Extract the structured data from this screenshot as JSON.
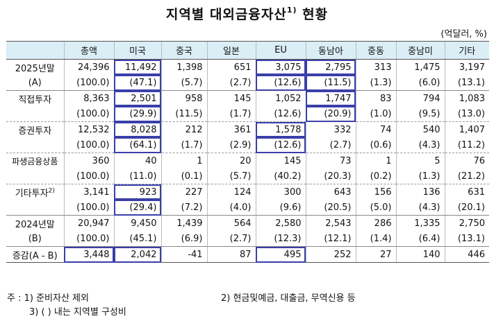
{
  "title": "지역별 대외금융자산",
  "title_sup": "1)",
  "title_suffix": " 현황",
  "unit": "(억달러, %)",
  "headers": [
    "",
    "총액",
    "미국",
    "중국",
    "일본",
    "EU",
    "동남아",
    "중동",
    "중남미",
    "기타"
  ],
  "rows": [
    {
      "label": "2025년말",
      "values": [
        "24,396",
        "11,492",
        "1,398",
        "651",
        "3,075",
        "2,795",
        "313",
        "1,475",
        "3,197"
      ]
    },
    {
      "label": "(A)",
      "values": [
        "(100.0)",
        "(47.1)",
        "(5.7)",
        "(2.7)",
        "(12.6)",
        "(11.5)",
        "(1.3)",
        "(6.0)",
        "(13.1)"
      ]
    },
    {
      "label": "직접투자",
      "values": [
        "8,363",
        "2,501",
        "958",
        "145",
        "1,052",
        "1,747",
        "83",
        "794",
        "1,083"
      ]
    },
    {
      "label": "",
      "values": [
        "(100.0)",
        "(29.9)",
        "(11.5)",
        "(1.7)",
        "(12.6)",
        "(20.9)",
        "(1.0)",
        "(9.5)",
        "(13.0)"
      ]
    },
    {
      "label": "증권투자",
      "values": [
        "12,532",
        "8,028",
        "212",
        "361",
        "1,578",
        "332",
        "74",
        "540",
        "1,407"
      ]
    },
    {
      "label": "",
      "values": [
        "(100.0)",
        "(64.1)",
        "(1.7)",
        "(2.9)",
        "(12.6)",
        "(2.7)",
        "(0.6)",
        "(4.3)",
        "(11.2)"
      ]
    },
    {
      "label": "파생금융상품",
      "values": [
        "360",
        "40",
        "1",
        "20",
        "145",
        "73",
        "1",
        "5",
        "76"
      ]
    },
    {
      "label": "",
      "values": [
        "(100.0)",
        "(11.0)",
        "(0.1)",
        "(5.7)",
        "(40.2)",
        "(20.3)",
        "(0.2)",
        "(1.3)",
        "(21.2)"
      ]
    },
    {
      "label": "기타투자",
      "label_sup": "2)",
      "values": [
        "3,141",
        "923",
        "227",
        "124",
        "300",
        "643",
        "156",
        "136",
        "631"
      ]
    },
    {
      "label": "",
      "values": [
        "(100.0)",
        "(29.4)",
        "(7.2)",
        "(4.0)",
        "(9.6)",
        "(20.5)",
        "(5.0)",
        "(4.3)",
        "(20.1)"
      ]
    },
    {
      "label": "2024년말",
      "values": [
        "20,947",
        "9,450",
        "1,439",
        "564",
        "2,580",
        "2,543",
        "286",
        "1,335",
        "2,750"
      ]
    },
    {
      "label": "(B)",
      "values": [
        "(100.0)",
        "(45.1)",
        "(6.9)",
        "(2.7)",
        "(12.3)",
        "(12.1)",
        "(1.4)",
        "(6.4)",
        "(13.1)"
      ]
    },
    {
      "label": "증감(A - B)",
      "values": [
        "3,448",
        "2,042",
        "-41",
        "87",
        "495",
        "252",
        "27",
        "140",
        "446"
      ]
    }
  ],
  "notes": {
    "n1": "주 : 1) 준비자산 제외",
    "n2": "2) 현금및예금, 대출금, 무역신용 등",
    "n3": "3) (  ) 내는 지역별 구성비"
  },
  "highlight_color": "#3a3fa8",
  "header_bg": "#dbeef6"
}
